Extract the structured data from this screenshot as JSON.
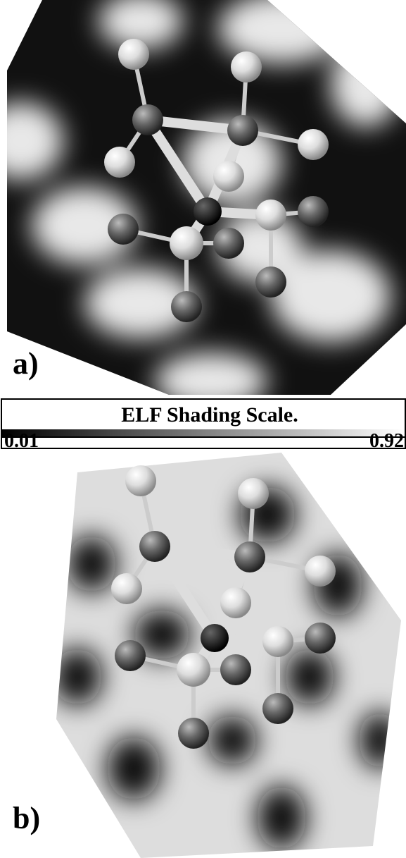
{
  "panels": [
    {
      "label": "a)"
    },
    {
      "label": "b)"
    }
  ],
  "scale": {
    "title": "ELF Shading Scale.",
    "min": 0.01,
    "max": 0.92
  }
}
